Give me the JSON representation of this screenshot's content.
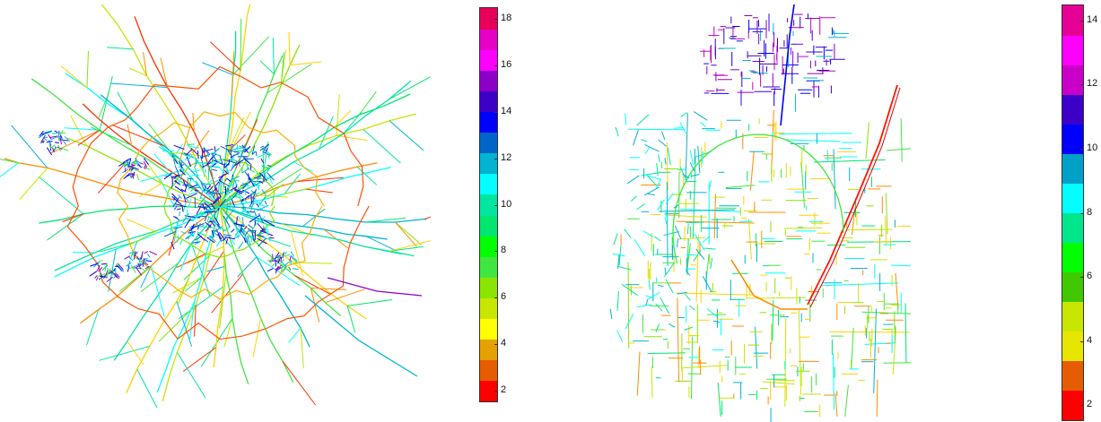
{
  "maps": [
    {
      "name": "left",
      "colorbar": {
        "range": [
          1.5,
          18.5
        ],
        "ticks": [
          2,
          4,
          6,
          8,
          10,
          12,
          14,
          16,
          18
        ],
        "colors": [
          "#ff0000",
          "#e65c00",
          "#e6a000",
          "#ffff00",
          "#c8e600",
          "#8ae600",
          "#40e640",
          "#00ff00",
          "#00e66e",
          "#00e6a0",
          "#00ffff",
          "#00b4d2",
          "#0064c8",
          "#0000ff",
          "#3c00c8",
          "#8c00c8",
          "#ff00ff",
          "#e600c8",
          "#e6005a"
        ]
      }
    },
    {
      "name": "right",
      "colorbar": {
        "range": [
          1.5,
          14.5
        ],
        "ticks": [
          2,
          4,
          6,
          8,
          10,
          12,
          14
        ],
        "colors": [
          "#ff0000",
          "#e65c00",
          "#e6e600",
          "#c8e600",
          "#40c800",
          "#00ff00",
          "#00e68c",
          "#00ffff",
          "#00a0c8",
          "#0000ff",
          "#3c00c8",
          "#c800c8",
          "#ff00ff",
          "#e60096"
        ]
      }
    }
  ]
}
